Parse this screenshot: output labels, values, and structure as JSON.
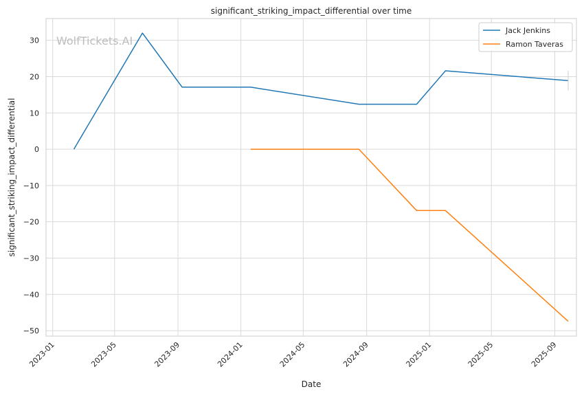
{
  "chart_data": {
    "type": "line",
    "title": "significant_striking_impact_differential over time",
    "xlabel": "Date",
    "ylabel": "significant_striking_impact_differential",
    "watermark": "WolfTickets.AI",
    "x_ticks": [
      "2023-01",
      "2023-05",
      "2023-09",
      "2024-01",
      "2024-05",
      "2024-09",
      "2025-01",
      "2025-05",
      "2025-09"
    ],
    "y_ticks": [
      30,
      20,
      10,
      0,
      -10,
      -20,
      -30,
      -40,
      -50
    ],
    "xlim": [
      "2022-12-19",
      "2025-10-13"
    ],
    "ylim": [
      -51.5,
      36
    ],
    "grid": true,
    "legend_position": "top-right",
    "series": [
      {
        "name": "Jack Jenkins",
        "color": "#1f77b4",
        "points": [
          {
            "x": "2023-02-11",
            "y": 0
          },
          {
            "x": "2023-06-24",
            "y": 32
          },
          {
            "x": "2023-09-09",
            "y": 17.1
          },
          {
            "x": "2024-01-20",
            "y": 17.1
          },
          {
            "x": "2024-08-17",
            "y": 12.4
          },
          {
            "x": "2024-12-07",
            "y": 12.4
          },
          {
            "x": "2025-02-01",
            "y": 21.6
          },
          {
            "x": "2025-09-27",
            "y": 18.9
          }
        ]
      },
      {
        "name": "Ramon Taveras",
        "color": "#ff7f0e",
        "points": [
          {
            "x": "2024-01-20",
            "y": 0
          },
          {
            "x": "2024-08-17",
            "y": 0
          },
          {
            "x": "2024-12-07",
            "y": -16.9
          },
          {
            "x": "2025-02-01",
            "y": -16.9
          },
          {
            "x": "2025-09-27",
            "y": -47.4
          }
        ]
      }
    ]
  }
}
